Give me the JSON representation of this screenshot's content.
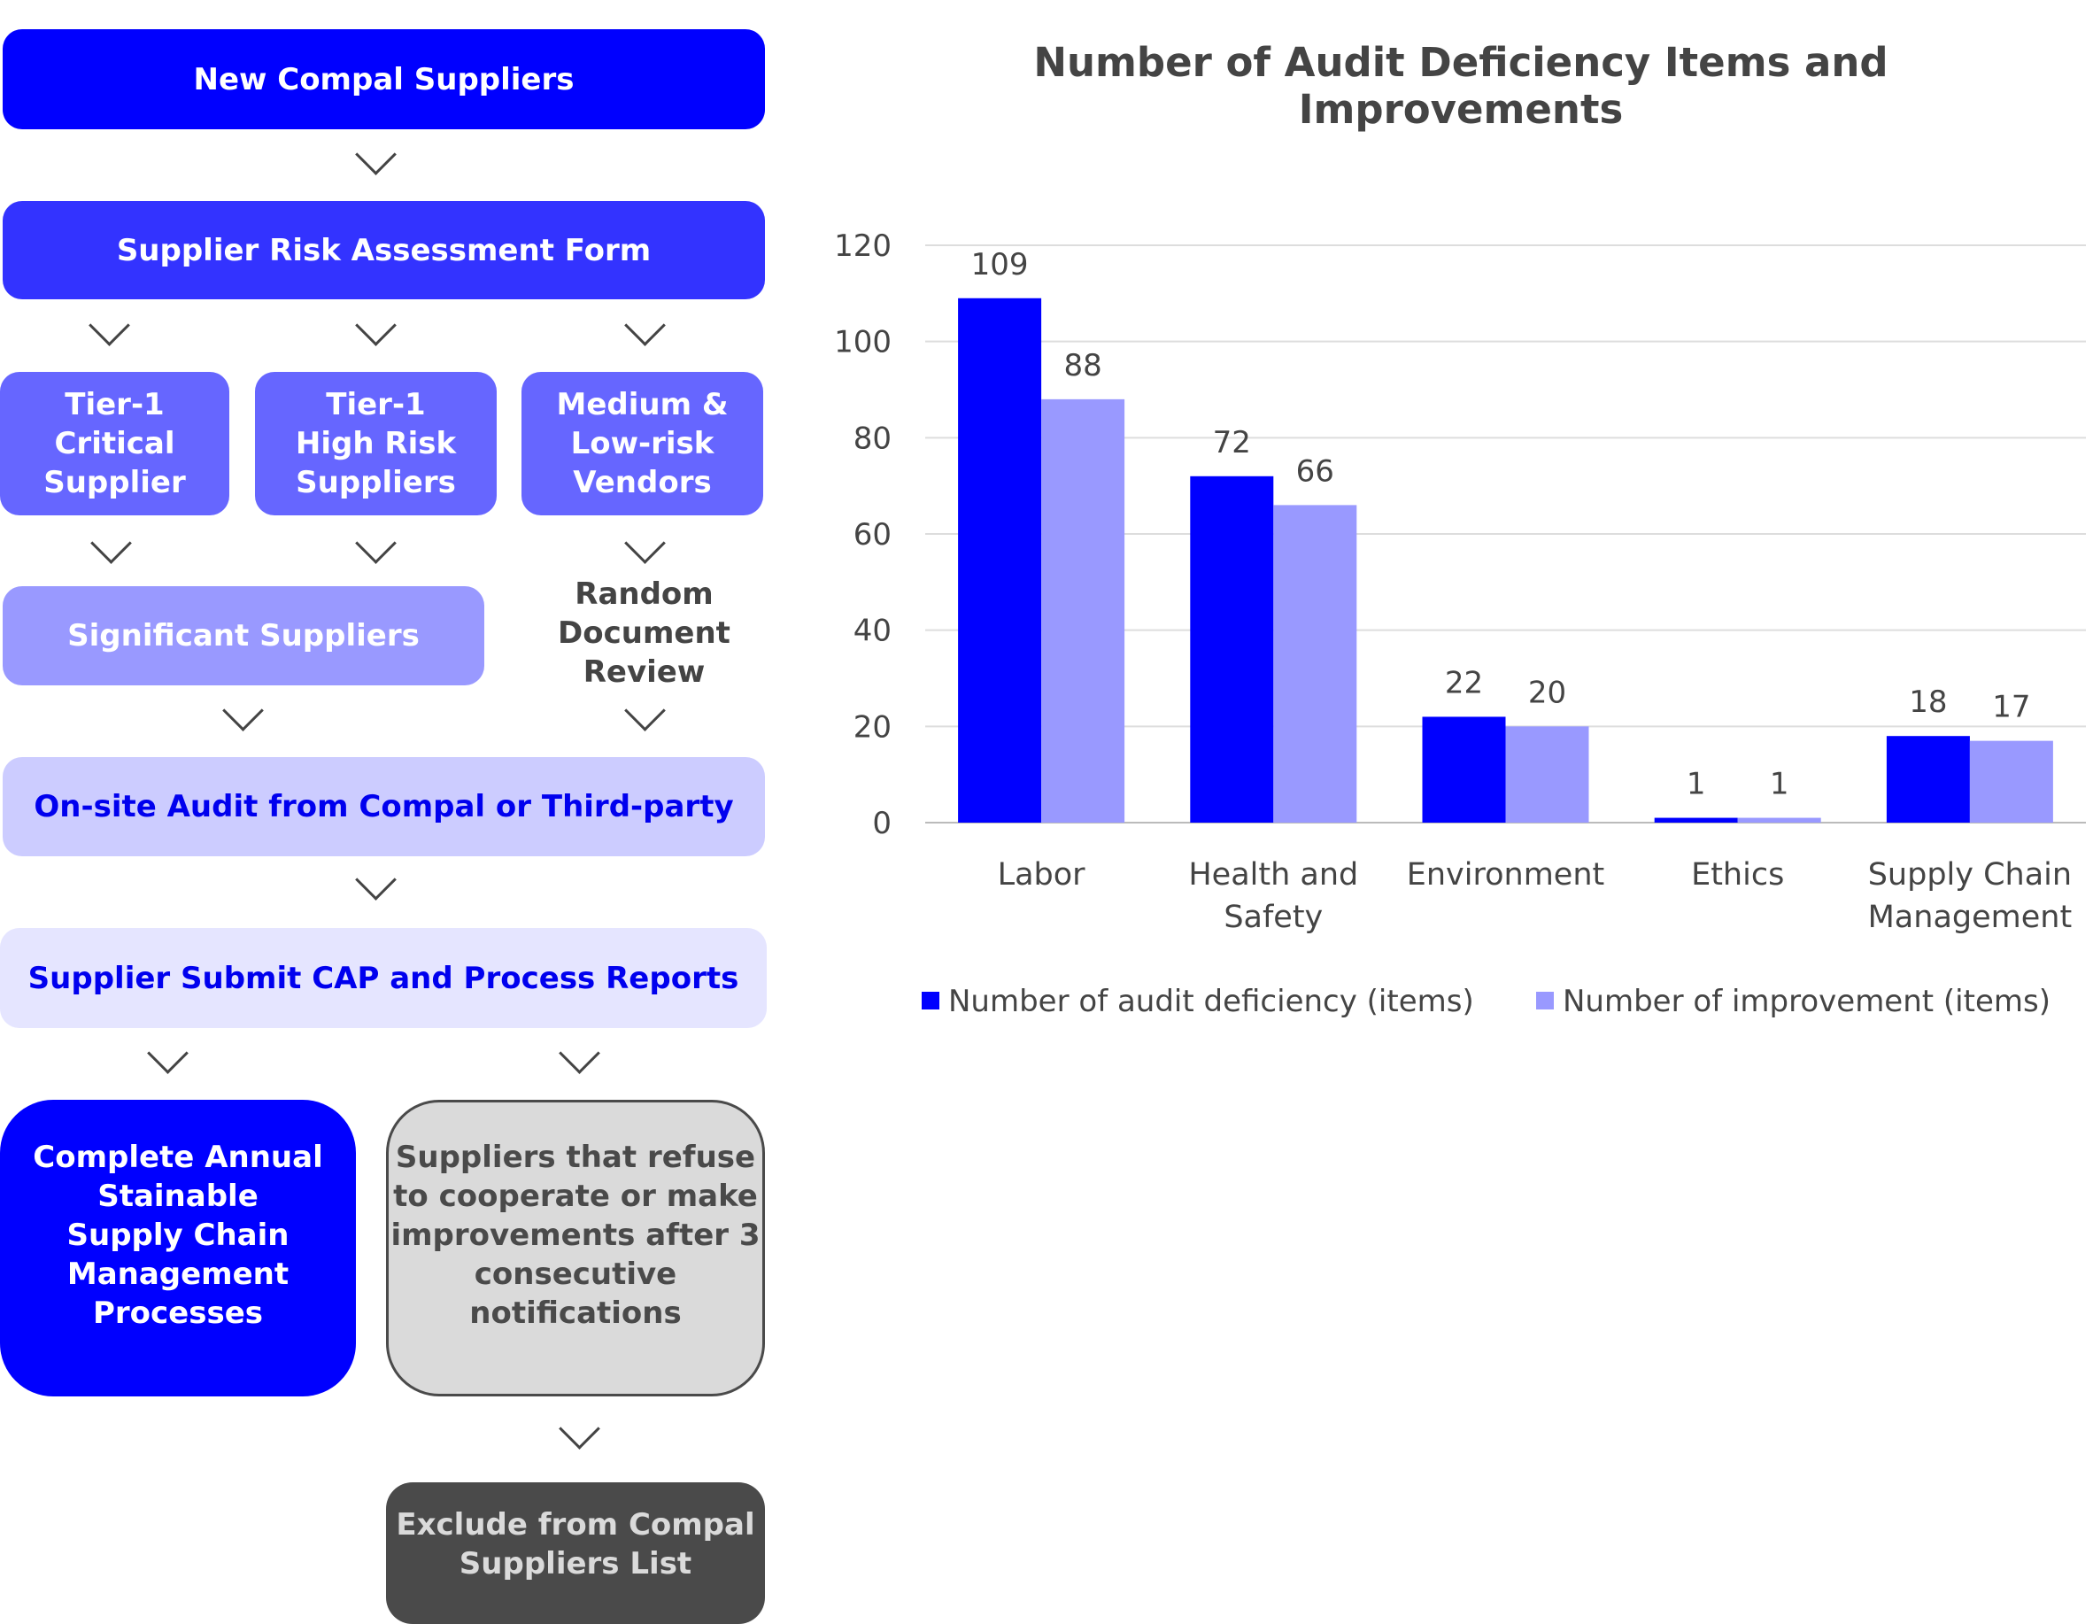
{
  "flow": {
    "new_suppliers": "New Compal Suppliers",
    "risk_form": "Supplier Risk Assessment Form",
    "tier1_critical": "Tier-1\nCritical\nSupplier",
    "tier1_high": "Tier-1\nHigh Risk\nSuppliers",
    "medium_low": "Medium &\nLow-risk\nVendors",
    "significant": "Significant Suppliers",
    "random_review": "Random\nDocument\nReview",
    "onsite_audit": "On-site Audit from Compal or Third-party",
    "cap_reports": "Supplier Submit CAP and Process Reports",
    "complete": "Complete Annual\nStainable\nSupply Chain\nManagement\nProcesses",
    "refuse": "Suppliers that refuse\nto cooperate or make\nimprovements after 3\nconsecutive\nnotifications",
    "exclude": "Exclude from Compal\nSuppliers List"
  },
  "colors": {
    "c1": "#0000FF",
    "c2": "#3333FF",
    "c3": "#6666FF",
    "c4": "#9999FF",
    "c5": "#CCCCFF",
    "c6": "#E5E5FF",
    "gray": "#DADADA",
    "dark": "#4A4A4A"
  },
  "chart_data": {
    "type": "bar",
    "title": "Number of Audit Deficiency Items and Improvements",
    "categories": [
      "Labor",
      "Health and\nSafety",
      "Environment",
      "Ethics",
      "Supply Chain\nManagement"
    ],
    "series": [
      {
        "name": "Number of audit deficiency (items)",
        "color": "#0000FF",
        "values": [
          109,
          72,
          22,
          1,
          18
        ]
      },
      {
        "name": "Number of improvement (items)",
        "color": "#9999FF",
        "values": [
          88,
          66,
          20,
          1,
          17
        ]
      }
    ],
    "ylim": [
      0,
      120
    ],
    "yticks": [
      "0",
      "20",
      "40",
      "60",
      "80",
      "100",
      "120"
    ],
    "grid": true,
    "legend": "bottom"
  }
}
